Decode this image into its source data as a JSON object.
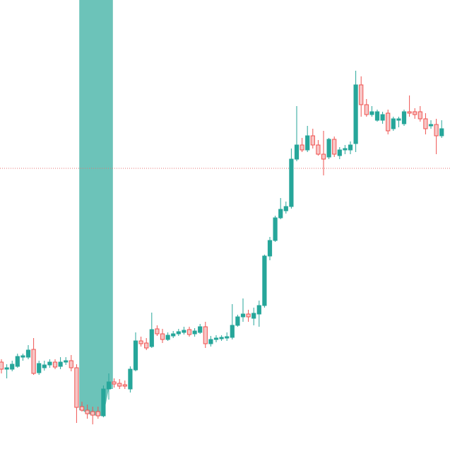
{
  "chart_data": {
    "type": "candlestick",
    "up_color": "#26a69a",
    "down_color": "#ef5350",
    "ylim": [
      0,
      649
    ],
    "open": [
      137,
      127,
      127,
      131,
      144,
      144,
      155,
      122,
      129,
      133,
      137,
      131,
      137,
      139,
      129,
      74,
      69,
      67,
      67,
      61,
      99,
      109,
      107,
      105,
      99,
      126,
      167,
      164,
      159,
      184,
      177,
      169,
      174,
      177,
      179,
      183,
      177,
      179,
      187,
      163,
      169,
      170,
      171,
      172,
      189,
      201,
      205,
      199,
      205,
      217,
      287,
      309,
      341,
      351,
      357,
      424,
      444,
      437,
      457,
      444,
      431,
      427,
      452,
      429,
      437,
      437,
      446,
      529,
      501,
      487,
      479,
      479,
      489,
      467,
      479,
      474,
      491,
      491,
      491,
      481,
      471,
      473,
      457
    ],
    "high": [
      141,
      134,
      139,
      149,
      149,
      161,
      171,
      139,
      139,
      141,
      141,
      144,
      144,
      147,
      134,
      81,
      77,
      74,
      74,
      104,
      121,
      114,
      113,
      111,
      131,
      179,
      173,
      171,
      207,
      189,
      184,
      179,
      181,
      184,
      187,
      187,
      185,
      191,
      194,
      174,
      175,
      175,
      179,
      219,
      204,
      227,
      211,
      214,
      224,
      289,
      314,
      344,
      369,
      364,
      439,
      499,
      454,
      471,
      467,
      451,
      464,
      454,
      456,
      441,
      444,
      449,
      549,
      541,
      509,
      499,
      494,
      491,
      494,
      484,
      484,
      494,
      514,
      496,
      499,
      489,
      479,
      481,
      479
    ],
    "low": [
      121,
      114,
      124,
      129,
      139,
      141,
      119,
      119,
      125,
      129,
      127,
      127,
      133,
      124,
      51,
      67,
      57,
      49,
      57,
      59,
      84,
      101,
      99,
      99,
      94,
      124,
      159,
      154,
      157,
      174,
      164,
      167,
      171,
      174,
      176,
      173,
      173,
      177,
      157,
      159,
      165,
      167,
      167,
      169,
      187,
      194,
      194,
      189,
      187,
      214,
      281,
      307,
      339,
      347,
      354,
      421,
      434,
      434,
      439,
      429,
      401,
      424,
      427,
      424,
      431,
      431,
      434,
      484,
      484,
      484,
      477,
      474,
      459,
      464,
      469,
      471,
      484,
      481,
      477,
      459,
      467,
      431,
      454
    ],
    "close": [
      127,
      129,
      134,
      145,
      146,
      154,
      121,
      135,
      133,
      137,
      130,
      137,
      139,
      129,
      73,
      69,
      64,
      62,
      61,
      99,
      109,
      106,
      103,
      103,
      127,
      167,
      163,
      157,
      183,
      177,
      169,
      175,
      177,
      180,
      182,
      176,
      181,
      187,
      163,
      169,
      171,
      172,
      173,
      189,
      201,
      205,
      201,
      206,
      217,
      287,
      309,
      341,
      353,
      357,
      424,
      444,
      437,
      457,
      444,
      431,
      424,
      452,
      431,
      437,
      439,
      444,
      529,
      501,
      487,
      491,
      491,
      487,
      464,
      481,
      481,
      491,
      489,
      487,
      481,
      467,
      473,
      457,
      467
    ],
    "highlight": {
      "from": 15,
      "to": 20,
      "color": "#6cc3b9"
    },
    "price_line": {
      "value": 411,
      "color": "#e57373"
    }
  }
}
